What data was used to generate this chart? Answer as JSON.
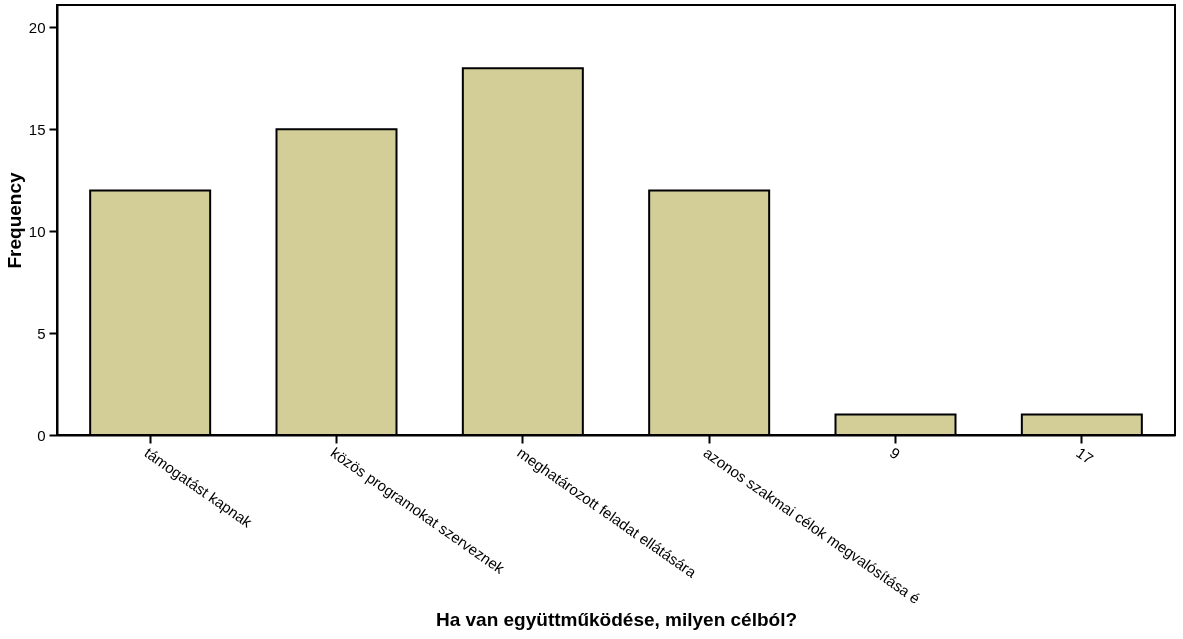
{
  "chart_data": {
    "type": "bar",
    "xlabel": "Ha van együttműködése, milyen célból?",
    "ylabel": "Frequency",
    "categories": [
      "támogatást kapnak",
      "közös programokat szerveznek",
      "meghatározott feladat ellátására",
      "azonos szakmai célok megvalósítása é",
      "9",
      "17"
    ],
    "values": [
      12,
      15,
      18,
      12,
      1,
      1
    ],
    "color": "#d3ce97",
    "ylim": [
      0,
      21.1
    ],
    "yticks": [
      0,
      5,
      10,
      15,
      20
    ],
    "grid": false
  }
}
